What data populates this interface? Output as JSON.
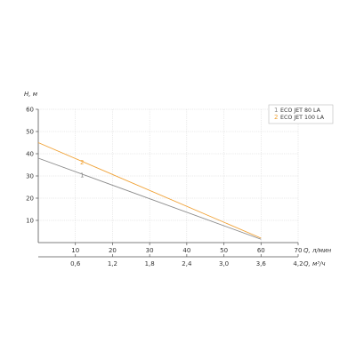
{
  "chart_data": {
    "type": "line",
    "ylabel": "H, м",
    "xlabel": "Q, л/мин",
    "x2label": "Q, м³/ч",
    "xlim": [
      0,
      70
    ],
    "ylim": [
      0,
      60
    ],
    "x_ticks": [
      10,
      20,
      30,
      40,
      50,
      60,
      70
    ],
    "y_ticks": [
      10,
      20,
      30,
      40,
      50,
      60
    ],
    "x2_ticks": [
      {
        "label": "0,6",
        "value": 0.6
      },
      {
        "label": "1,2",
        "value": 1.2
      },
      {
        "label": "1,8",
        "value": 1.8
      },
      {
        "label": "2,4",
        "value": 2.4
      },
      {
        "label": "3,0",
        "value": 3.0
      },
      {
        "label": "3,6",
        "value": 3.6
      },
      {
        "label": "4,2",
        "value": 4.2
      }
    ],
    "x2_per_x": 0.06,
    "grid": true,
    "legend_position": "top-right",
    "series": [
      {
        "name": "ECO JET 80 LA",
        "marker": "1",
        "color": "#8a8a8a",
        "x": [
          0,
          60
        ],
        "y": [
          38,
          1.5
        ]
      },
      {
        "name": "ECO JET 100 LA",
        "marker": "2",
        "color": "#f0a032",
        "x": [
          0,
          60
        ],
        "y": [
          45,
          2
        ]
      }
    ]
  }
}
